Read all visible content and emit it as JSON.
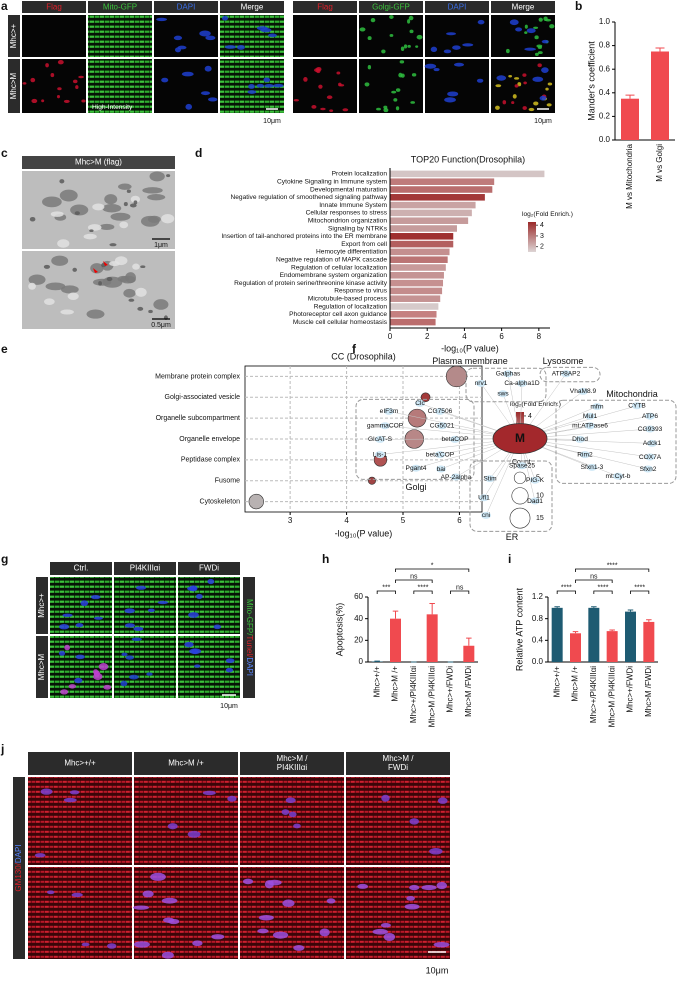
{
  "panels": {
    "a": {
      "label": "a",
      "groups": [
        {
          "columns": [
            "Flag",
            "Mito-GFP",
            "DAPI",
            "Merge"
          ],
          "note": "High-Intensity",
          "scale_bar": "10μm"
        },
        {
          "columns": [
            "Flag",
            "Golgi-GFP",
            "DAPI",
            "Merge"
          ],
          "scale_bar": "10μm"
        }
      ],
      "rows": [
        "Mhc>+",
        "Mhc>M"
      ]
    },
    "c": {
      "label": "c",
      "title": "Mhc>M (flag)",
      "scale_bars": [
        "1μm",
        "0.5μm"
      ]
    },
    "g": {
      "label": "g",
      "columns": [
        "Ctrl.",
        "PI4KIIIαi",
        "FWDi"
      ],
      "rows": [
        "Mhc>+",
        "Mhc>M"
      ],
      "side_label": [
        "Mito-GFP/",
        "Tunel/",
        "DAPI"
      ],
      "scale_bar": "10μm"
    },
    "j": {
      "label": "j",
      "columns": [
        [
          "Mhc>+/+"
        ],
        [
          "Mhc>M /+"
        ],
        [
          "Mhc>M /",
          "PI4KIIIαi"
        ],
        [
          "Mhc>M /",
          "FWDi"
        ]
      ],
      "side_label": [
        "GM130/",
        "DAPI"
      ],
      "scale_bar": "10μm"
    }
  },
  "network": {
    "label": "f",
    "center": "M",
    "groups": [
      {
        "name": "Plasma membrane",
        "nodes": [
          "Galphas",
          "nrv1",
          "Ca-alpha1D",
          "sws"
        ]
      },
      {
        "name": "Lysosome",
        "nodes": [
          "ATP8AP2",
          "VhaM8.9"
        ]
      },
      {
        "name": "Mitochondria",
        "nodes": [
          "mfrn",
          "CYTB",
          "Mul1",
          "ATP6",
          "mt:ATPase6",
          "CG9393",
          "Dhod",
          "Adck1",
          "Rim2",
          "COX7A",
          "Sfxn1-3",
          "Sfxn2",
          "mt:Cyt-b"
        ]
      },
      {
        "name": "Golgi",
        "nodes": [
          "Clc",
          "eIF3m",
          "CG7506",
          "gammaCOP",
          "CG5021",
          "GlcAT-S",
          "betaCOP",
          "Lis-1",
          "beta'COP",
          "Pgant4",
          "bai",
          "AP-2alpha"
        ]
      },
      {
        "name": "ER",
        "nodes": [
          "Spase25",
          "Stim",
          "PIG-K",
          "Ufl1",
          "Dad1",
          "cni"
        ]
      }
    ]
  },
  "chart_data": [
    {
      "type": "bar",
      "panel_label": "b",
      "ylabel": "Mander's coefficient",
      "categories": [
        "M vs Mitochondria",
        "M vs Golgi"
      ],
      "values": [
        0.35,
        0.75
      ],
      "errors": [
        0.03,
        0.03
      ],
      "color": "#f04a4f",
      "ylim": [
        0,
        1.0
      ],
      "yticks": [
        {
          "value": 0,
          "label": "0.0"
        },
        0.2,
        0.4,
        0.6,
        0.8,
        {
          "value": 1.0,
          "label": "1.0"
        }
      ]
    },
    {
      "type": "hbar",
      "panel_label": "d",
      "title": "TOP20 Function(Drosophila)",
      "xlabel": "-log₁₀(P value)",
      "categories": [
        "Protein localization",
        "Cytokine Signaling in Immune system",
        "Developmental maturation",
        "Negative regulation of smoothened signaling pathway",
        "Innate Immune System",
        "Cellular responses to stress",
        "Mitochondrion organization",
        "Signaling by NTRKs",
        "Insertion of tail-anchored proteins into the ER membrane",
        "Export from cell",
        "Hemocyte differentiation",
        "Negative regulation of MAPK cascade",
        "Regulation of cellular localization",
        "Endomembrane system organization",
        "Regulation of protein serine/threonine kinase activity",
        "Response to virus",
        "Microtubule-based process",
        "Regulation of localization",
        "Photoreceptor cell axon guidance",
        "Muscle cell cellular homeostasis"
      ],
      "values": [
        8.3,
        5.6,
        5.5,
        5.1,
        4.6,
        4.4,
        4.2,
        3.6,
        3.4,
        3.4,
        3.2,
        3.1,
        3.0,
        2.9,
        2.85,
        2.8,
        2.7,
        2.6,
        2.5,
        2.45
      ],
      "colors": [
        "#d4c5c5",
        "#bf7b7b",
        "#b96d6d",
        "#a33838",
        "#c9a3a3",
        "#cdb0b0",
        "#c69b9b",
        "#c69c9c",
        "#9f2f2f",
        "#b35f5f",
        "#c48f8f",
        "#bb7474",
        "#c89a9a",
        "#c59393",
        "#c69090",
        "#c48c8c",
        "#c59393",
        "#d6caca",
        "#c58080",
        "#bb6d6d"
      ],
      "xlim": [
        0,
        8.6
      ],
      "xticks": [
        0,
        2,
        4,
        6,
        8
      ],
      "colorbar": {
        "title": "log₂(Fold Enrich.)",
        "lim": [
          1.5,
          4.3
        ],
        "ticks": [
          4,
          3,
          2
        ],
        "colors": [
          "#ddd5d5",
          "#9b2a2a"
        ]
      }
    },
    {
      "type": "bubble",
      "panel_label": "e",
      "title": "CC (Drosophila)",
      "xlabel": "-log₁₀(P value)",
      "categories": [
        "Membrane protein complex",
        "Golgi-associated vesicle",
        "Organelle subcompartment",
        "Organelle envelope",
        "Peptidase complex",
        "Fusome",
        "Cytoskeleton"
      ],
      "values": [
        5.95,
        5.4,
        5.25,
        5.2,
        4.6,
        4.45,
        2.4
      ],
      "sizes": [
        16,
        3,
        12,
        13,
        6,
        2,
        8
      ],
      "colors": [
        "#b48a8a",
        "#a33a3a",
        "#b67a7a",
        "#b88787",
        "#b05353",
        "#a04444",
        "#b8b2b2"
      ],
      "xlim": [
        2.2,
        6.4
      ],
      "xticks": [
        3,
        4,
        5,
        6
      ],
      "grid": true,
      "colorbar": {
        "title": "log₂(Fold Enrich.)",
        "lim": [
          1.7,
          4.3
        ],
        "ticks": [
          4,
          3,
          2
        ],
        "colors": [
          "#ddd5d5",
          "#9b2a2a"
        ]
      },
      "size_legend": {
        "title": "Count",
        "values": [
          5,
          10,
          15
        ]
      }
    },
    {
      "type": "bar",
      "panel_label": "h",
      "ylabel": "Apoptosis(%)",
      "categories": [
        "Mhc>+/+",
        "Mhc>M /+",
        "Mhc>+/PI4KIIIαi",
        "Mhc>M /PI4KIIIαi",
        "Mhc>+/FWDi",
        "Mhc>M /FWDi"
      ],
      "values": [
        0.5,
        40,
        0,
        44,
        0,
        15
      ],
      "errors": [
        0.3,
        7,
        0,
        10,
        0,
        7
      ],
      "colors": [
        "#1e5b72",
        "#f04a4f",
        "#1e5b72",
        "#f04a4f",
        "#1e5b72",
        "#f04a4f"
      ],
      "ylim": [
        0,
        60
      ],
      "yticks": [
        0,
        20,
        40,
        60
      ],
      "significance": [
        "***",
        "****",
        "ns",
        "ns",
        "*"
      ]
    },
    {
      "type": "bar",
      "panel_label": "i",
      "ylabel": "Relative ATP content",
      "categories": [
        "Mhc>+/+",
        "Mhc>M /+",
        "Mhc>+/PI4KIIIαi",
        "Mhc>M /PI4KIIIαi",
        "Mhc>+/FWDi",
        "Mhc>M /FWDi"
      ],
      "values": [
        1.0,
        0.53,
        1.0,
        0.57,
        0.93,
        0.74
      ],
      "errors": [
        0.02,
        0.03,
        0.02,
        0.02,
        0.03,
        0.04
      ],
      "colors": [
        "#1e5b72",
        "#f04a4f",
        "#1e5b72",
        "#f04a4f",
        "#1e5b72",
        "#f04a4f"
      ],
      "ylim": [
        0,
        1.2
      ],
      "yticks": [
        {
          "value": 0,
          "label": "0.0"
        },
        0.4,
        0.8,
        1.2
      ],
      "significance": [
        "****",
        "****",
        "****",
        "ns",
        "****"
      ]
    }
  ]
}
